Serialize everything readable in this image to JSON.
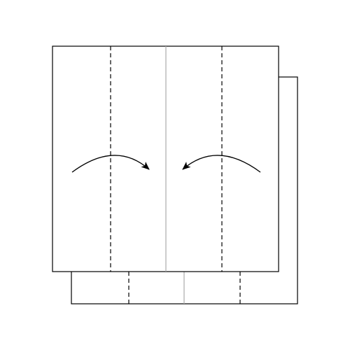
{
  "diagram": {
    "stroke_color": "#000000",
    "fold_line_color": "#aaaaaa",
    "background_color": "#ffffff",
    "layers": [
      {
        "name": "back-sheet"
      },
      {
        "name": "front-sheet"
      }
    ],
    "creases": [
      {
        "name": "center-crease",
        "style": "solid-gray"
      },
      {
        "name": "left-valley-fold",
        "style": "dashed"
      },
      {
        "name": "right-valley-fold",
        "style": "dashed"
      }
    ],
    "arrows": [
      {
        "name": "left-fold-arrow",
        "direction": "right"
      },
      {
        "name": "right-fold-arrow",
        "direction": "left"
      }
    ]
  }
}
